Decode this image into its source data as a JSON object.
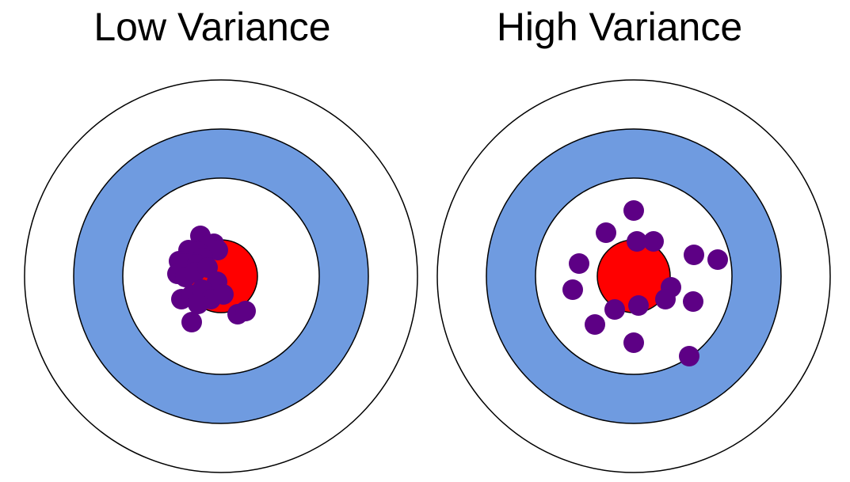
{
  "panels": [
    {
      "title": "Low Variance",
      "shots": [
        [
          253,
          298
        ],
        [
          262,
          310
        ],
        [
          270,
          308
        ],
        [
          275,
          316
        ],
        [
          238,
          316
        ],
        [
          244,
          322
        ],
        [
          250,
          318
        ],
        [
          256,
          326
        ],
        [
          226,
          330
        ],
        [
          234,
          333
        ],
        [
          249,
          334
        ],
        [
          224,
          346
        ],
        [
          234,
          350
        ],
        [
          246,
          344
        ],
        [
          262,
          338
        ],
        [
          274,
          356
        ],
        [
          229,
          378
        ],
        [
          242,
          373
        ],
        [
          255,
          366
        ],
        [
          266,
          378
        ],
        [
          282,
          372
        ],
        [
          250,
          384
        ],
        [
          300,
          397
        ],
        [
          310,
          393
        ],
        [
          242,
          407
        ]
      ]
    },
    {
      "title": "High Variance",
      "shots": [
        [
          800,
          266
        ],
        [
          765,
          294
        ],
        [
          804,
          305
        ],
        [
          825,
          305
        ],
        [
          731,
          333
        ],
        [
          876,
          322
        ],
        [
          906,
          328
        ],
        [
          723,
          366
        ],
        [
          847,
          363
        ],
        [
          840,
          378
        ],
        [
          875,
          381
        ],
        [
          776,
          391
        ],
        [
          806,
          386
        ],
        [
          751,
          410
        ],
        [
          800,
          433
        ],
        [
          870,
          450
        ]
      ]
    }
  ],
  "colors": {
    "outer_ring": "#ffffff",
    "middle_ring": "#6f9be0",
    "inner_ring": "#ffffff",
    "bullseye": "#ff0000",
    "shot": "#5d0085",
    "outline": "#000000"
  }
}
